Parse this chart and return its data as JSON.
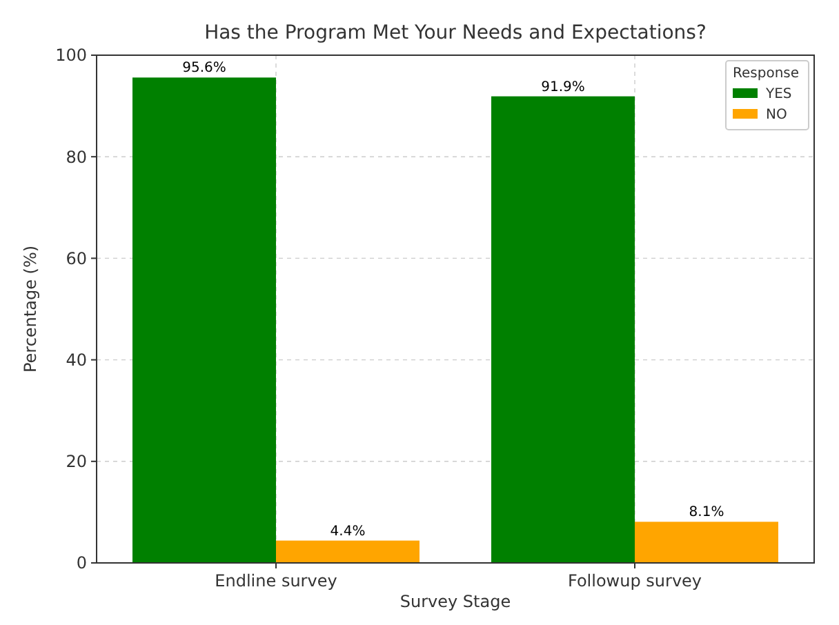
{
  "chart_data": {
    "type": "bar",
    "title": "Has the Program Met Your Needs and Expectations?",
    "xlabel": "Survey Stage",
    "ylabel": "Percentage (%)",
    "legend_title": "Response",
    "categories": [
      "Endline survey",
      "Followup survey"
    ],
    "series": [
      {
        "name": "YES",
        "color": "#008000",
        "values": [
          95.6,
          91.9
        ],
        "value_labels": [
          "95.6%",
          "91.9%"
        ]
      },
      {
        "name": "NO",
        "color": "#ffa500",
        "values": [
          4.4,
          8.1
        ],
        "value_labels": [
          "4.4%",
          "8.1%"
        ]
      }
    ],
    "ylim": [
      0,
      100
    ],
    "yticks": [
      0,
      20,
      40,
      60,
      80,
      100
    ],
    "grid": true,
    "legend": "top right"
  }
}
